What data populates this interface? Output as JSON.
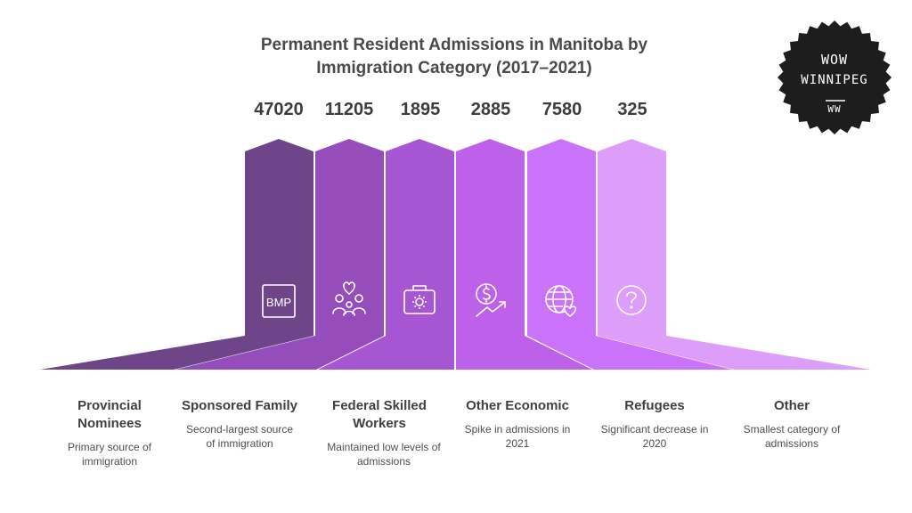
{
  "title_line1": "Permanent Resident Admissions in Manitoba by",
  "title_line2": "Immigration Category (2017–2021)",
  "logo": {
    "line1": "WOW",
    "line2": "WINNIPEG",
    "line3": "WW"
  },
  "categories": [
    {
      "name": "Provincial Nominees",
      "name_l1": "Provincial",
      "name_l2": "Nominees",
      "value": "47020",
      "desc_l1": "Primary source of",
      "desc_l2": "immigration",
      "icon": "bmp-icon",
      "icon_text": "BMP",
      "color": "#6e4588"
    },
    {
      "name": "Sponsored Family",
      "name_l1": "Sponsored Family",
      "name_l2": "",
      "value": "11205",
      "desc_l1": "Second-largest source",
      "desc_l2": "of immigration",
      "icon": "family-heart-icon",
      "color": "#944dbb"
    },
    {
      "name": "Federal Skilled Workers",
      "name_l1": "Federal Skilled",
      "name_l2": "Workers",
      "value": "1895",
      "desc_l1": "Maintained low levels of",
      "desc_l2": "admissions",
      "icon": "briefcase-gear-icon",
      "color": "#a655d3"
    },
    {
      "name": "Other Economic",
      "name_l1": "Other Economic",
      "name_l2": "",
      "value": "2885",
      "desc_l1": "Spike in admissions in",
      "desc_l2": "2021",
      "icon": "dollar-growth-icon",
      "color": "#be61ea"
    },
    {
      "name": "Refugees",
      "name_l1": "Refugees",
      "name_l2": "",
      "value": "7580",
      "desc_l1": "Significant decrease in",
      "desc_l2": "2020",
      "icon": "globe-heart-icon",
      "color": "#cb72fa"
    },
    {
      "name": "Other",
      "name_l1": "Other",
      "name_l2": "",
      "value": "325",
      "desc_l1": "Smallest category of",
      "desc_l2": "admissions",
      "icon": "question-icon",
      "color": "#dc9ef9"
    }
  ]
}
